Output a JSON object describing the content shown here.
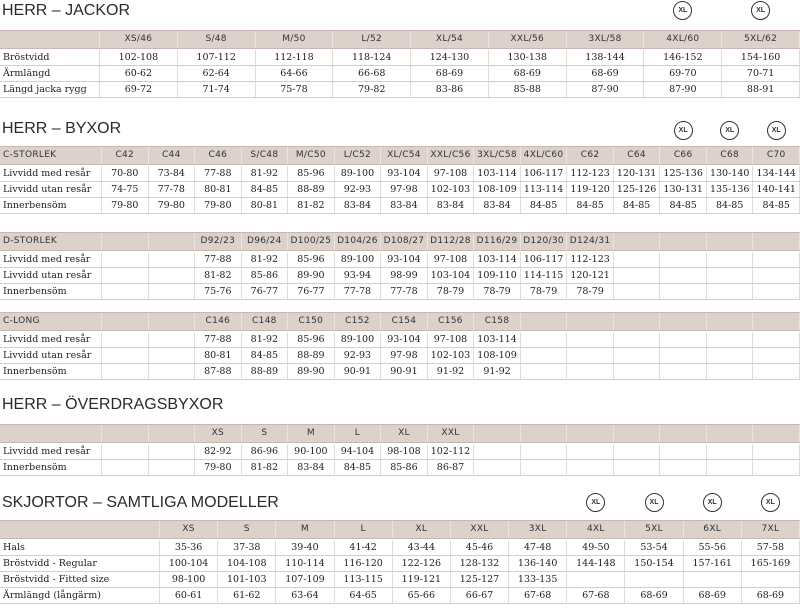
{
  "sections": [
    {
      "title": "HERR – JACKOR",
      "tables": [
        {
          "header": {
            "columns": [
              "XS/46",
              "S/48",
              "M/50",
              "L/52",
              "XL/54",
              "XXL/56",
              "3XL/58",
              {
                "text": "4XL/60",
                "badge": "XL"
              },
              {
                "text": "5XL/62",
                "badge": "XL"
              }
            ]
          },
          "rows": [
            {
              "label": "Bröstvidd",
              "values": [
                "102-108",
                "107-112",
                "112-118",
                "118-124",
                "124-130",
                "130-138",
                "138-144",
                "146-152",
                "154-160"
              ]
            },
            {
              "label": "Ärmlängd",
              "values": [
                "60-62",
                "62-64",
                "64-66",
                "66-68",
                "68-69",
                "68-69",
                "68-69",
                "69-70",
                "70-71"
              ]
            },
            {
              "label": "Längd jacka rygg",
              "values": [
                "69-72",
                "71-74",
                "75-78",
                "79-82",
                "83-86",
                "85-88",
                "87-90",
                "87-90",
                "88-91"
              ]
            }
          ]
        }
      ]
    },
    {
      "title": "HERR – BYXOR",
      "tables": [
        {
          "header": {
            "label": "C-STORLEK",
            "columns": [
              "C42",
              "C44",
              "C46",
              "S/C48",
              "M/C50",
              "L/C52",
              "XL/C54",
              "XXL/C56",
              "3XL/C58",
              "4XL/C60",
              "C62",
              "C64",
              {
                "text": "C66",
                "badge": "XL"
              },
              {
                "text": "C68",
                "badge": "XL"
              },
              {
                "text": "C70",
                "badge": "XL"
              }
            ]
          },
          "rows": [
            {
              "label": "Livvidd med resår",
              "values": [
                "70-80",
                "73-84",
                "77-88",
                "81-92",
                "85-96",
                "89-100",
                "93-104",
                "97-108",
                "103-114",
                "106-117",
                "112-123",
                "120-131",
                "125-136",
                "130-140",
                "134-144"
              ]
            },
            {
              "label": "Livvidd utan resår",
              "values": [
                "74-75",
                "77-78",
                "80-81",
                "84-85",
                "88-89",
                "92-93",
                "97-98",
                "102-103",
                "108-109",
                "113-114",
                "119-120",
                "125-126",
                "130-131",
                "135-136",
                "140-141"
              ]
            },
            {
              "label": "Innerbensöm",
              "values": [
                "79-80",
                "79-80",
                "79-80",
                "80-81",
                "81-82",
                "83-84",
                "83-84",
                "83-84",
                "83-84",
                "84-85",
                "84-85",
                "84-85",
                "84-85",
                "84-85",
                "84-85"
              ]
            }
          ]
        },
        {
          "header": {
            "label": "D-STORLEK",
            "columns": [
              null,
              null,
              "D92/23",
              "D96/24",
              "D100/25",
              "D104/26",
              "D108/27",
              "D112/28",
              "D116/29",
              "D120/30",
              "D124/31"
            ]
          },
          "rows": [
            {
              "label": "Livvidd med resår",
              "values": [
                null,
                null,
                "77-88",
                "81-92",
                "85-96",
                "89-100",
                "93-104",
                "97-108",
                "103-114",
                "106-117",
                "112-123"
              ]
            },
            {
              "label": "Livvidd utan resår",
              "values": [
                null,
                null,
                "81-82",
                "85-86",
                "89-90",
                "93-94",
                "98-99",
                "103-104",
                "109-110",
                "114-115",
                "120-121"
              ]
            },
            {
              "label": "Innerbensöm",
              "values": [
                null,
                null,
                "75-76",
                "76-77",
                "76-77",
                "77-78",
                "77-78",
                "78-79",
                "78-79",
                "78-79",
                "78-79"
              ]
            }
          ]
        },
        {
          "header": {
            "label": "C-LONG",
            "columns": [
              null,
              null,
              "C146",
              "C148",
              "C150",
              "C152",
              "C154",
              "C156",
              "C158"
            ]
          },
          "rows": [
            {
              "label": "Livvidd med resår",
              "values": [
                null,
                null,
                "77-88",
                "81-92",
                "85-96",
                "89-100",
                "93-104",
                "97-108",
                "103-114"
              ]
            },
            {
              "label": "Livvidd utan resår",
              "values": [
                null,
                null,
                "80-81",
                "84-85",
                "88-89",
                "92-93",
                "97-98",
                "102-103",
                "108-109"
              ]
            },
            {
              "label": "Innerbensöm",
              "values": [
                null,
                null,
                "87-88",
                "88-89",
                "89-90",
                "90-91",
                "90-91",
                "91-92",
                "91-92"
              ]
            }
          ]
        }
      ]
    },
    {
      "title": "HERR – ÖVERDRAGSBYXOR",
      "tables": [
        {
          "header": {
            "columns": [
              null,
              null,
              "XS",
              "S",
              "M",
              "L",
              "XL",
              "XXL"
            ]
          },
          "rows": [
            {
              "label": "Livvidd med resår",
              "values": [
                null,
                null,
                "82-92",
                "86-96",
                "90-100",
                "94-104",
                "98-108",
                "102-112"
              ]
            },
            {
              "label": "Innerbensöm",
              "values": [
                null,
                null,
                "79-80",
                "81-82",
                "83-84",
                "84-85",
                "85-86",
                "86-87"
              ]
            }
          ]
        }
      ]
    },
    {
      "title": "SKJORTOR – SAMTLIGA MODELLER",
      "tables": [
        {
          "header": {
            "columns": [
              "XS",
              "S",
              "M",
              "L",
              "XL",
              "XXL",
              "3XL",
              {
                "text": "4XL",
                "badge": "XL"
              },
              {
                "text": "5XL",
                "badge": "XL"
              },
              {
                "text": "6XL",
                "badge": "XL"
              },
              {
                "text": "7XL",
                "badge": "XL"
              }
            ]
          },
          "rows": [
            {
              "label": "Hals",
              "values": [
                "35-36",
                "37-38",
                "39-40",
                "41-42",
                "43-44",
                "45-46",
                "47-48",
                "49-50",
                "53-54",
                "55-56",
                "57-58"
              ]
            },
            {
              "label": "Bröstvidd - Regular",
              "values": [
                "100-104",
                "104-108",
                "110-114",
                "116-120",
                "122-126",
                "128-132",
                "136-140",
                "144-148",
                "150-154",
                "157-161",
                "165-169"
              ]
            },
            {
              "label": "Bröstvidd -  Fitted size",
              "values": [
                "98-100",
                "101-103",
                "107-109",
                "113-115",
                "119-121",
                "125-127",
                "133-135"
              ]
            },
            {
              "label": "Ärmlängd (långärm)",
              "values": [
                "60-61",
                "61-62",
                "63-64",
                "64-65",
                "65-66",
                "66-67",
                "67-68",
                "67-68",
                "68-69",
                "68-69",
                "68-69"
              ]
            }
          ]
        }
      ]
    }
  ]
}
